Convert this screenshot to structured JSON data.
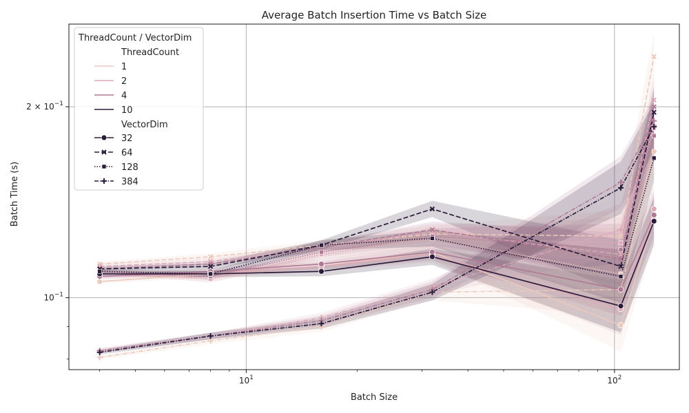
{
  "chart_data": {
    "type": "line",
    "title": "Average Batch Insertion Time vs Batch Size",
    "xlabel": "Batch Size",
    "ylabel": "Batch Time (s)",
    "xscale": "log",
    "yscale": "log",
    "xlim": [
      3.3,
      150
    ],
    "ylim": [
      0.077,
      0.27
    ],
    "grid": true,
    "legend_placement": "top-left",
    "x_ticks": [
      {
        "value": 10,
        "base": "10",
        "exp": "1"
      },
      {
        "value": 100,
        "base": "10",
        "exp": "2"
      }
    ],
    "y_ticks": [
      {
        "value": 0.1,
        "prefix": "",
        "base": "10",
        "exp": "−1"
      },
      {
        "value": 0.2,
        "prefix": "2 × ",
        "base": "10",
        "exp": "−1"
      }
    ],
    "legend": {
      "title": "ThreadCount / VectorDim",
      "hue_title": "ThreadCount",
      "style_title": "VectorDim",
      "hue_entries": [
        "1",
        "2",
        "4",
        "10"
      ],
      "style_entries": [
        "32",
        "64",
        "128",
        "384"
      ]
    },
    "colors": {
      "1": "#ebc9bd",
      "2": "#dca8b6",
      "4": "#b07993",
      "10": "#2b1b3a"
    },
    "x": [
      4,
      8,
      16,
      32,
      104,
      128
    ],
    "series": [
      {
        "thread": "1",
        "dim": "32",
        "values": [
          0.106,
          0.109,
          0.112,
          0.118,
          0.0905,
          0.133
        ]
      },
      {
        "thread": "2",
        "dim": "32",
        "values": [
          0.108,
          0.109,
          0.112,
          0.117,
          0.096,
          0.138
        ]
      },
      {
        "thread": "4",
        "dim": "32",
        "values": [
          0.108,
          0.11,
          0.113,
          0.118,
          0.103,
          0.135
        ]
      },
      {
        "thread": "10",
        "dim": "32",
        "values": [
          0.109,
          0.109,
          0.11,
          0.116,
          0.097,
          0.132
        ]
      },
      {
        "thread": "1",
        "dim": "64",
        "values": [
          0.113,
          0.116,
          0.121,
          0.126,
          0.125,
          0.24
        ]
      },
      {
        "thread": "2",
        "dim": "64",
        "values": [
          0.112,
          0.114,
          0.12,
          0.127,
          0.117,
          0.205
        ]
      },
      {
        "thread": "4",
        "dim": "64",
        "values": [
          0.111,
          0.113,
          0.12,
          0.128,
          0.115,
          0.2
        ]
      },
      {
        "thread": "10",
        "dim": "64",
        "values": [
          0.111,
          0.112,
          0.121,
          0.138,
          0.112,
          0.196
        ]
      },
      {
        "thread": "1",
        "dim": "128",
        "values": [
          0.11,
          0.107,
          0.117,
          0.124,
          0.109,
          0.17
        ]
      },
      {
        "thread": "2",
        "dim": "128",
        "values": [
          0.11,
          0.107,
          0.117,
          0.124,
          0.122,
          0.185
        ]
      },
      {
        "thread": "4",
        "dim": "128",
        "values": [
          0.11,
          0.108,
          0.118,
          0.125,
          0.119,
          0.18
        ]
      },
      {
        "thread": "10",
        "dim": "128",
        "values": [
          0.11,
          0.109,
          0.121,
          0.124,
          0.108,
          0.166
        ]
      },
      {
        "thread": "1",
        "dim": "384",
        "values": [
          0.0805,
          0.0855,
          0.09,
          0.102,
          0.103,
          0.17
        ]
      },
      {
        "thread": "2",
        "dim": "384",
        "values": [
          0.0825,
          0.087,
          0.093,
          0.104,
          0.128,
          0.187
        ]
      },
      {
        "thread": "4",
        "dim": "384",
        "values": [
          0.0825,
          0.087,
          0.092,
          0.103,
          0.152,
          0.19
        ]
      },
      {
        "thread": "10",
        "dim": "384",
        "values": [
          0.082,
          0.087,
          0.091,
          0.102,
          0.149,
          0.186
        ]
      }
    ]
  }
}
